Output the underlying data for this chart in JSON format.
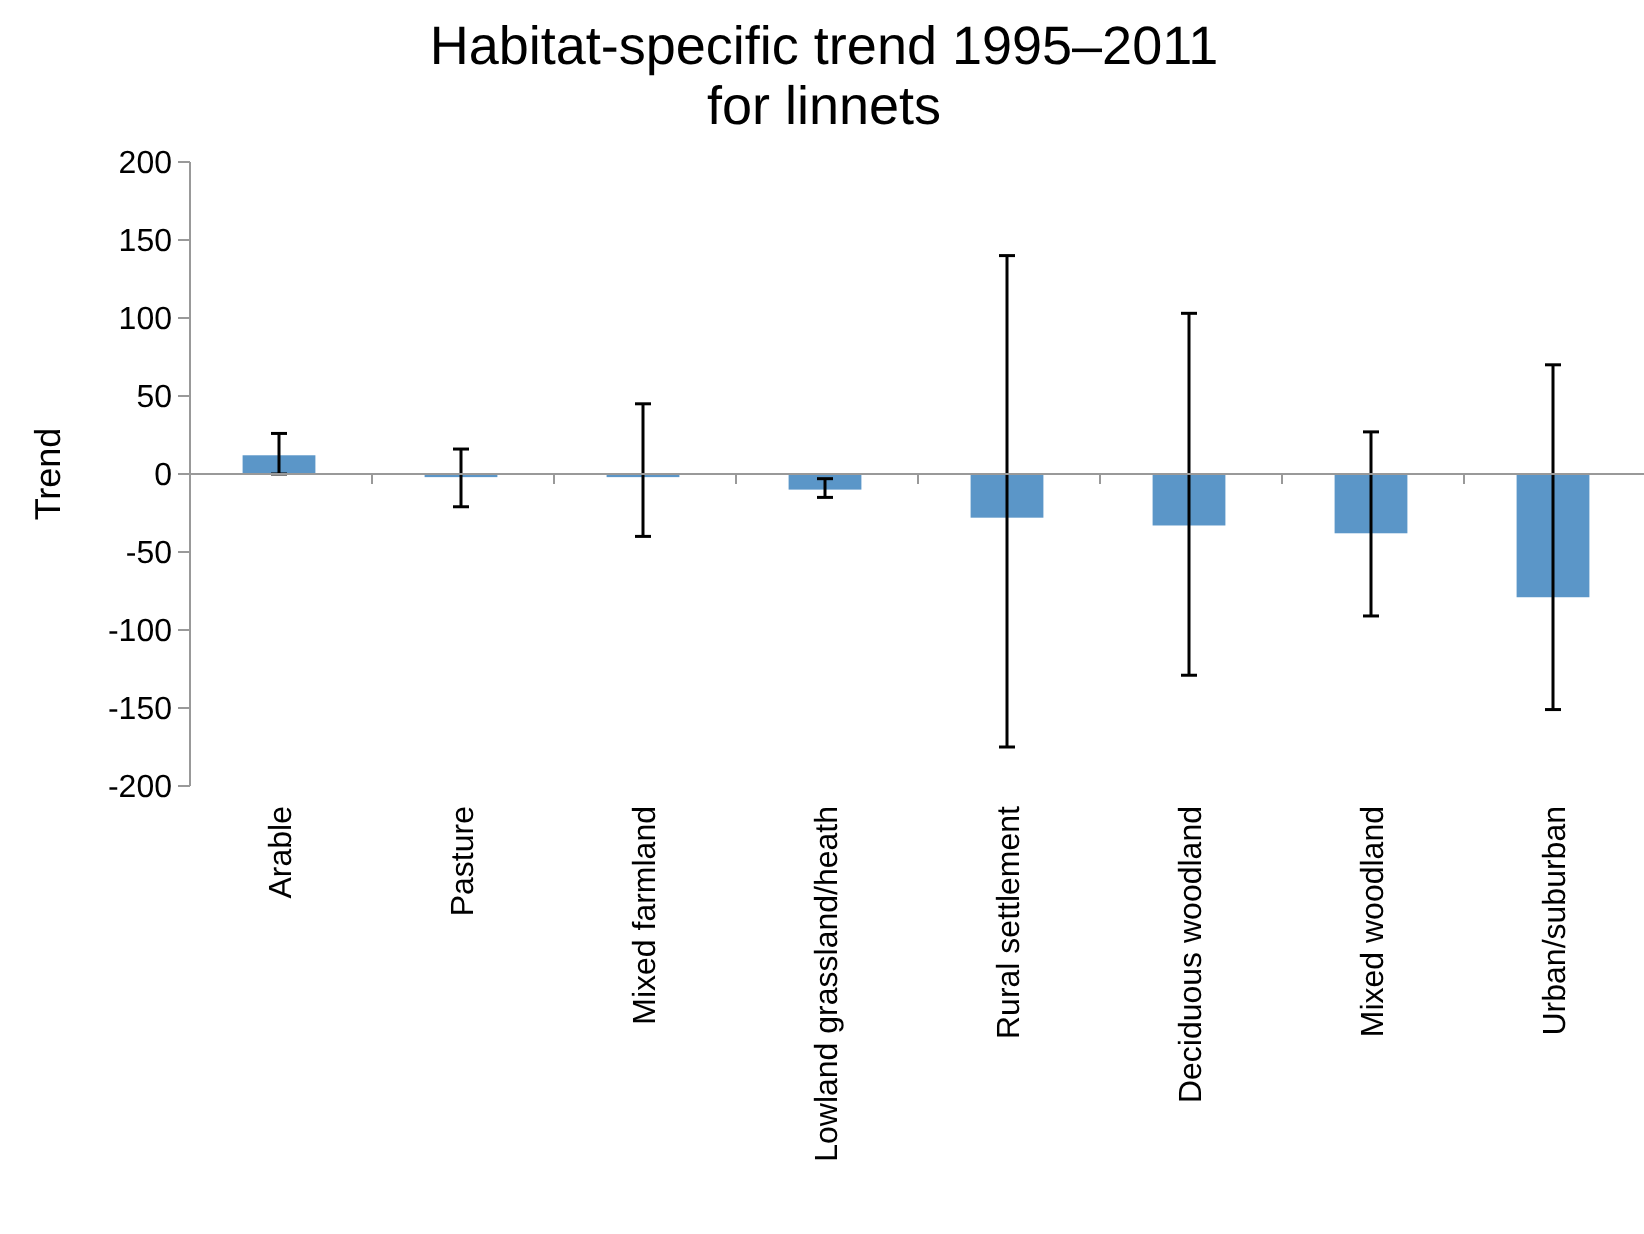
{
  "chart_data": {
    "type": "bar",
    "title": "Habitat-specific trend 1995–2011\nfor linnets",
    "ylabel": "Trend",
    "categories": [
      "Arable",
      "Pasture",
      "Mixed farmland",
      "Lowland grassland/heath",
      "Rural settlement",
      "Deciduous woodland",
      "Mixed woodland",
      "Urban/suburban"
    ],
    "values": [
      12,
      -2,
      -2,
      -10,
      -28,
      -33,
      -38,
      -79
    ],
    "errors": [
      [
        0,
        26
      ],
      [
        -21,
        16
      ],
      [
        -40,
        45
      ],
      [
        -15,
        -3
      ],
      [
        -175,
        140
      ],
      [
        -129,
        103
      ],
      [
        -91,
        27
      ],
      [
        -151,
        70
      ]
    ],
    "color": "#5b96c8",
    "ylim": [
      -200,
      200
    ],
    "yticks": [
      -200,
      -150,
      -100,
      -50,
      0,
      50,
      100,
      150,
      200
    ],
    "grid": false
  }
}
